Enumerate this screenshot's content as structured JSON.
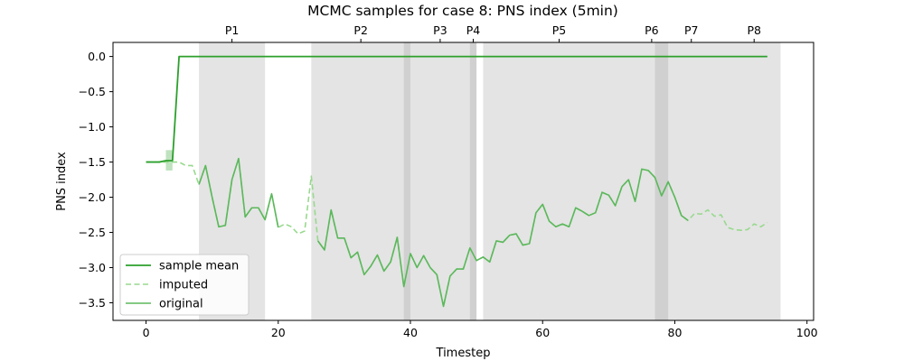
{
  "chart_data": {
    "type": "line",
    "title": "MCMC samples for case 8: PNS index (5min)",
    "xlabel": "Timestep",
    "ylabel": "PNS index",
    "xlim": [
      -5,
      101
    ],
    "ylim": [
      -3.75,
      0.2
    ],
    "xticks": [
      0,
      20,
      40,
      60,
      80,
      100
    ],
    "yticks": [
      0.0,
      -0.5,
      -1.0,
      -1.5,
      -2.0,
      -2.5,
      -3.0,
      -3.5
    ],
    "grid": false,
    "legend_position": "lower-left",
    "colors": {
      "mean": "#2ca02c",
      "imputed": "#98d98e",
      "original": "#5cb85c",
      "band": "#d3d3d3",
      "band_overlap": "#b0b0b0"
    },
    "periods": [
      {
        "label": "P1",
        "start": 8,
        "end": 18
      },
      {
        "label": "P2",
        "start": 25,
        "end": 40
      },
      {
        "label": "P3",
        "start": 39,
        "end": 50
      },
      {
        "label": "P4",
        "start": 49,
        "end": 50
      },
      {
        "label": "P5",
        "start": 51,
        "end": 74
      },
      {
        "label": "P6",
        "start": 74,
        "end": 79
      },
      {
        "label": "P7",
        "start": 77,
        "end": 88
      },
      {
        "label": "P8",
        "start": 88,
        "end": 96
      }
    ],
    "series": [
      {
        "name": "sample mean",
        "style": "solid",
        "x": [
          0,
          1,
          2,
          3,
          4,
          5,
          94
        ],
        "y": [
          -1.5,
          -1.5,
          -1.5,
          -1.48,
          -1.48,
          0.0,
          0.0
        ]
      },
      {
        "name": "imputed",
        "style": "dashed",
        "x": [
          0,
          1,
          2,
          3,
          4,
          5,
          6,
          7,
          8,
          9,
          10,
          11,
          12,
          13,
          14,
          15,
          16,
          17,
          18,
          19,
          20,
          21,
          22,
          23,
          24,
          25,
          26,
          27,
          28,
          29,
          30,
          31,
          32,
          33,
          34,
          35,
          36,
          37,
          38,
          39,
          40,
          41,
          42,
          43,
          44,
          45,
          46,
          47,
          48,
          49,
          50,
          51,
          52,
          53,
          54,
          55,
          56,
          57,
          58,
          59,
          60,
          61,
          62,
          63,
          64,
          65,
          66,
          67,
          68,
          69,
          70,
          71,
          72,
          73,
          74,
          75,
          76,
          77,
          78,
          79,
          80,
          81,
          82,
          83,
          84,
          85,
          86,
          87,
          88,
          89,
          90,
          91,
          92,
          93,
          94
        ],
        "y": [
          -1.5,
          -1.5,
          -1.5,
          -1.5,
          -1.5,
          -1.5,
          -1.55,
          -1.55,
          -1.82,
          -1.55,
          -2.0,
          -2.42,
          -2.4,
          -1.75,
          -1.45,
          -2.28,
          -2.15,
          -2.15,
          -2.32,
          -1.95,
          -2.43,
          -2.38,
          -2.42,
          -2.52,
          -2.48,
          -1.7,
          -2.62,
          -2.75,
          -2.18,
          -2.58,
          -2.58,
          -2.86,
          -2.78,
          -3.1,
          -2.98,
          -2.82,
          -3.05,
          -2.92,
          -2.57,
          -3.27,
          -2.8,
          -3.0,
          -2.83,
          -3.0,
          -3.1,
          -3.55,
          -3.12,
          -3.02,
          -3.02,
          -2.72,
          -2.9,
          -2.85,
          -2.92,
          -2.62,
          -2.64,
          -2.54,
          -2.52,
          -2.68,
          -2.66,
          -2.22,
          -2.1,
          -2.34,
          -2.42,
          -2.38,
          -2.42,
          -2.15,
          -2.2,
          -2.26,
          -2.22,
          -1.93,
          -1.97,
          -2.12,
          -1.85,
          -1.75,
          -2.06,
          -1.6,
          -1.62,
          -1.72,
          -1.98,
          -1.78,
          -2.0,
          -2.26,
          -2.33,
          -2.23,
          -2.24,
          -2.18,
          -2.27,
          -2.25,
          -2.43,
          -2.46,
          -2.47,
          -2.46,
          -2.38,
          -2.42,
          -2.36
        ]
      },
      {
        "name": "original",
        "style": "solid",
        "x": [
          3,
          4,
          5,
          6,
          7,
          8,
          9,
          10,
          11,
          12,
          13,
          14,
          15,
          16,
          17,
          18,
          19,
          20,
          21,
          22,
          23,
          24,
          25,
          26,
          27,
          28,
          29,
          30,
          31,
          32,
          33,
          34,
          35,
          36,
          37,
          38,
          39,
          40,
          41,
          42,
          43,
          44,
          45,
          46,
          47,
          48,
          49,
          50,
          51,
          52,
          53,
          54,
          55,
          56,
          57,
          58,
          59,
          60,
          61,
          62,
          63,
          64,
          65,
          66,
          67,
          68,
          69,
          70,
          71,
          72,
          73,
          74,
          75,
          76,
          77,
          78,
          79,
          80,
          81,
          82,
          83,
          84,
          85,
          86,
          87,
          88,
          89,
          90,
          91,
          92,
          93,
          94
        ],
        "y": [
          null,
          null,
          null,
          null,
          null,
          -1.82,
          -1.55,
          -2.0,
          -2.42,
          -2.4,
          -1.75,
          -1.45,
          -2.28,
          -2.15,
          -2.15,
          -2.32,
          -1.95,
          -2.43,
          null,
          null,
          null,
          null,
          null,
          -2.62,
          -2.75,
          -2.18,
          -2.58,
          -2.58,
          -2.86,
          -2.78,
          -3.1,
          -2.98,
          -2.82,
          -3.05,
          -2.92,
          -2.57,
          -3.27,
          -2.8,
          -3.0,
          -2.83,
          -3.0,
          -3.1,
          -3.55,
          -3.12,
          -3.02,
          -3.02,
          -2.72,
          -2.9,
          -2.85,
          -2.92,
          -2.62,
          -2.64,
          -2.54,
          -2.52,
          -2.68,
          -2.66,
          -2.22,
          -2.1,
          -2.34,
          -2.42,
          -2.38,
          -2.42,
          -2.15,
          -2.2,
          -2.26,
          -2.22,
          -1.93,
          -1.97,
          -2.12,
          -1.85,
          -1.75,
          -2.06,
          -1.6,
          -1.62,
          -1.72,
          -1.98,
          -1.78,
          -2.0,
          -2.26,
          -2.33,
          null,
          null,
          null,
          null,
          null,
          null,
          null,
          null,
          null,
          null,
          null,
          null
        ]
      }
    ],
    "uncertainty_band": {
      "x": [
        3,
        4
      ],
      "lower": [
        -1.62,
        -1.62
      ],
      "upper": [
        -1.33,
        -1.33
      ]
    }
  }
}
